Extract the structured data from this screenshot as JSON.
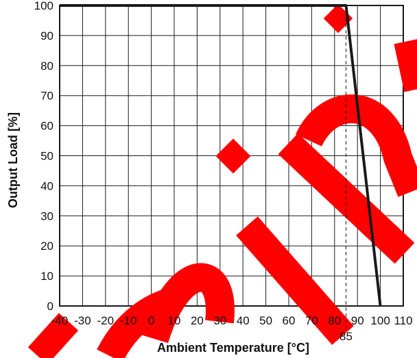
{
  "chart_data": {
    "type": "line",
    "xlabel": "Ambient Temperature [°C]",
    "ylabel": "Output Load [%]",
    "xlim": [
      -40,
      110
    ],
    "ylim": [
      0,
      100
    ],
    "x_ticks": [
      -40,
      -30,
      -20,
      -10,
      0,
      10,
      20,
      30,
      40,
      50,
      60,
      70,
      80,
      90,
      100,
      110
    ],
    "y_ticks": [
      0,
      10,
      20,
      30,
      40,
      50,
      60,
      70,
      80,
      90,
      100
    ],
    "grid": true,
    "series": [
      {
        "x": [
          -40,
          85,
          100
        ],
        "y": [
          100,
          100,
          0
        ]
      }
    ],
    "annotations": [
      {
        "type": "vertical-dashed-line",
        "x": 85,
        "label": "85"
      }
    ]
  },
  "watermark": {
    "text": "preliminary",
    "color": "#ff0000"
  },
  "colors": {
    "line": "#1a1a1a",
    "grid": "#1a1a1a",
    "watermark": "#ff0000"
  }
}
